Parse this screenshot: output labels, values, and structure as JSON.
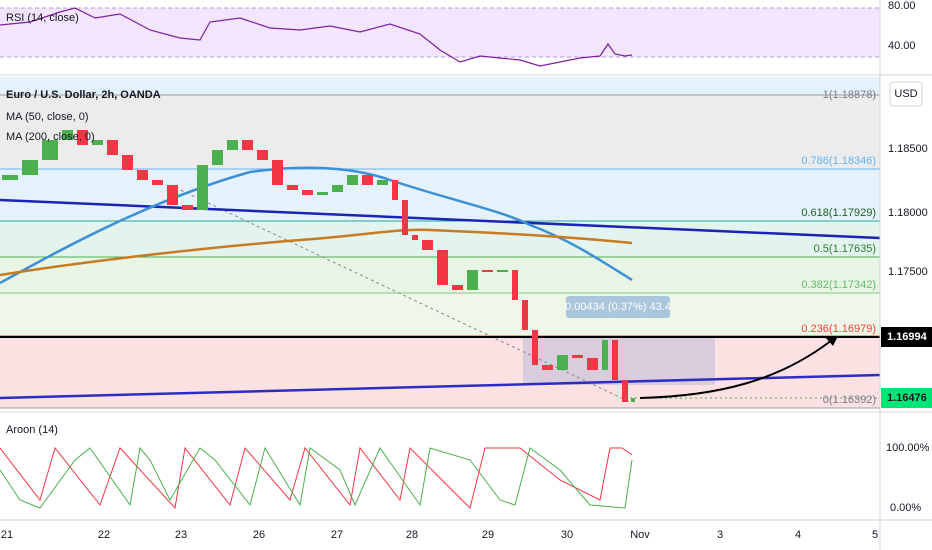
{
  "rsi_pane": {
    "label": "RSI (14, close)",
    "ticks": [
      "80.00",
      "40.00"
    ]
  },
  "main_pane": {
    "symbol": "Euro / U.S. Dollar, 2h, OANDA",
    "indicators": [
      "MA (50, close, 0)",
      "MA (200, close, 0)"
    ],
    "currency": "USD",
    "price_ticks": [
      "1.18500",
      "1.18000",
      "1.17500"
    ],
    "fib_levels": [
      "1(1.18878)",
      "0.786(1.18346)",
      "0.618(1.17929)",
      "0.5(1.17635)",
      "0.382(1.17342)",
      "0.236(1.16979)",
      "0(1.16392)"
    ],
    "measure": "0.00434 (0.37%) 43.4",
    "price_labels": [
      "1.16994",
      "1.16476"
    ]
  },
  "aroon_pane": {
    "label": "Aroon (14)",
    "ticks": [
      "100.00%",
      "0.00%"
    ]
  },
  "time_axis": [
    "21",
    "22",
    "23",
    "26",
    "27",
    "28",
    "29",
    "30",
    "Nov",
    "3",
    "4",
    "5"
  ]
}
